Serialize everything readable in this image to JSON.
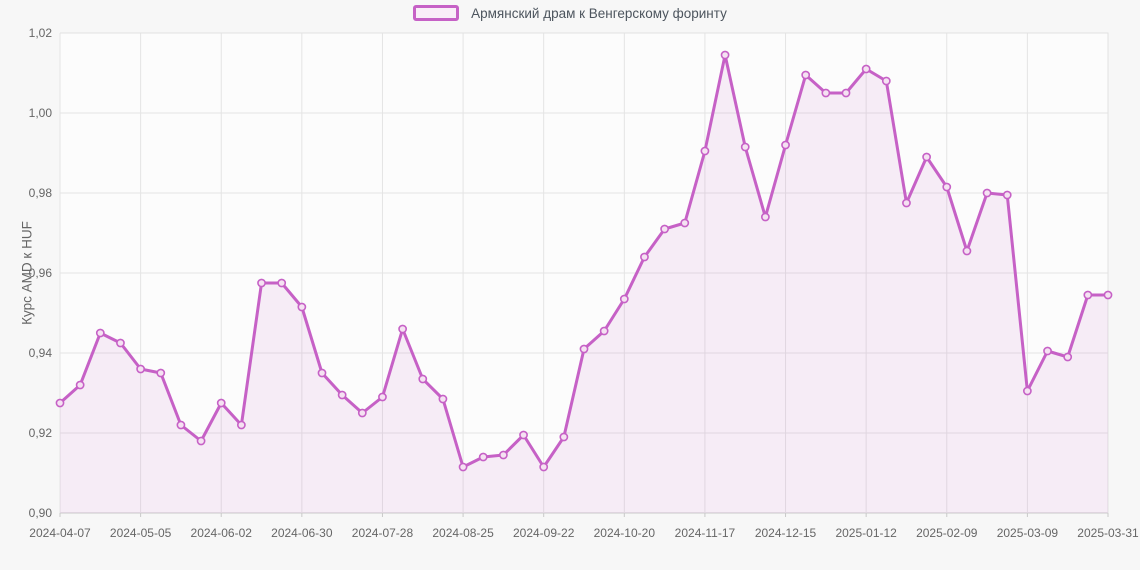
{
  "chart_data": {
    "type": "area",
    "title": "",
    "legend_label": "Армянский драм к Венгерскому форинту",
    "legend_position": "top-center",
    "xlabel": "",
    "ylabel": "Курс AMD к HUF",
    "ylim": [
      0.9,
      1.02
    ],
    "grid": true,
    "x": [
      "2024-04-07",
      "2024-04-14",
      "2024-04-21",
      "2024-04-28",
      "2024-05-05",
      "2024-05-12",
      "2024-05-19",
      "2024-05-26",
      "2024-06-02",
      "2024-06-09",
      "2024-06-16",
      "2024-06-23",
      "2024-06-30",
      "2024-07-07",
      "2024-07-14",
      "2024-07-21",
      "2024-07-28",
      "2024-08-04",
      "2024-08-11",
      "2024-08-18",
      "2024-08-25",
      "2024-09-01",
      "2024-09-08",
      "2024-09-15",
      "2024-09-22",
      "2024-09-29",
      "2024-10-06",
      "2024-10-13",
      "2024-10-20",
      "2024-10-27",
      "2024-11-03",
      "2024-11-10",
      "2024-11-17",
      "2024-11-24",
      "2024-12-01",
      "2024-12-08",
      "2024-12-15",
      "2024-12-22",
      "2024-12-29",
      "2025-01-05",
      "2025-01-12",
      "2025-01-19",
      "2025-01-26",
      "2025-02-02",
      "2025-02-09",
      "2025-02-16",
      "2025-02-23",
      "2025-03-02",
      "2025-03-09",
      "2025-03-16",
      "2025-03-23",
      "2025-03-30",
      "2025-03-31"
    ],
    "series": [
      {
        "name": "Армянский драм к Венгерскому форинту",
        "values": [
          0.9275,
          0.932,
          0.945,
          0.9425,
          0.936,
          0.935,
          0.922,
          0.918,
          0.9275,
          0.922,
          0.9575,
          0.9575,
          0.9515,
          0.935,
          0.9295,
          0.925,
          0.929,
          0.946,
          0.9335,
          0.9285,
          0.9115,
          0.914,
          0.9145,
          0.9195,
          0.9115,
          0.919,
          0.941,
          0.9455,
          0.9535,
          0.964,
          0.971,
          0.9725,
          0.9905,
          1.0145,
          0.9915,
          0.974,
          0.992,
          1.0095,
          1.005,
          1.005,
          1.011,
          1.008,
          0.9775,
          0.989,
          0.9815,
          0.9655,
          0.98,
          0.9795,
          0.9305,
          0.9405,
          0.939,
          0.9545,
          0.9545
        ]
      }
    ],
    "x_ticks": [
      {
        "index": 0,
        "label": "2024-04-07"
      },
      {
        "index": 4,
        "label": "2024-05-05"
      },
      {
        "index": 8,
        "label": "2024-06-02"
      },
      {
        "index": 12,
        "label": "2024-06-30"
      },
      {
        "index": 16,
        "label": "2024-07-28"
      },
      {
        "index": 20,
        "label": "2024-08-25"
      },
      {
        "index": 24,
        "label": "2024-09-22"
      },
      {
        "index": 28,
        "label": "2024-10-20"
      },
      {
        "index": 32,
        "label": "2024-11-17"
      },
      {
        "index": 36,
        "label": "2024-12-15"
      },
      {
        "index": 40,
        "label": "2025-01-12"
      },
      {
        "index": 44,
        "label": "2025-02-09"
      },
      {
        "index": 48,
        "label": "2025-03-09"
      },
      {
        "index": 52,
        "label": "2025-03-31"
      }
    ],
    "y_ticks": [
      {
        "value": 1.02,
        "label": "1,02"
      },
      {
        "value": 1.0,
        "label": "1,00"
      },
      {
        "value": 0.98,
        "label": "0,98"
      },
      {
        "value": 0.96,
        "label": "0,96"
      },
      {
        "value": 0.94,
        "label": "0,94"
      },
      {
        "value": 0.92,
        "label": "0,92"
      },
      {
        "value": 0.9,
        "label": "0,90"
      }
    ],
    "colors": {
      "line": "#c661c6",
      "marker_fill": "#f5e2f2",
      "area_fill_rgba": "rgba(198,97,198,0.10)",
      "plot_background": "#fcfcfc",
      "page_background": "#f7f7f7",
      "grid": "#e4e4e4",
      "border": "#e2e2e2",
      "axis_line": "#c9c9c9",
      "tick_label": "#666666",
      "legend_text": "#4d555e"
    }
  }
}
